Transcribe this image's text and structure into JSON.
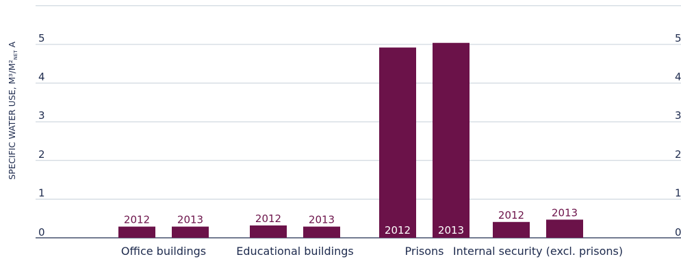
{
  "chart_data": {
    "type": "bar",
    "categories": [
      "Office buildings",
      "Educational buildings",
      "Prisons",
      "Internal security (excl. prisons)"
    ],
    "series": [
      {
        "name": "2012",
        "values": [
          0.29,
          0.32,
          4.92,
          0.41
        ]
      },
      {
        "name": "2013",
        "values": [
          0.29,
          0.29,
          5.04,
          0.47
        ]
      }
    ],
    "ylabel_main": "SPECIFIC WATER USE, M³/M²",
    "ylabel_sub": "NET",
    "ylabel_tail": " A",
    "ylim": [
      0,
      6
    ],
    "yticks": [
      "0",
      "1",
      "2",
      "3",
      "4",
      "5"
    ],
    "grid": true,
    "colors": {
      "bar": "#6b1249",
      "grid": "#c5cfd8",
      "axis": "#1d2a4d",
      "text": "#1d2a4d",
      "label_on_bar": "#ffffff"
    }
  }
}
